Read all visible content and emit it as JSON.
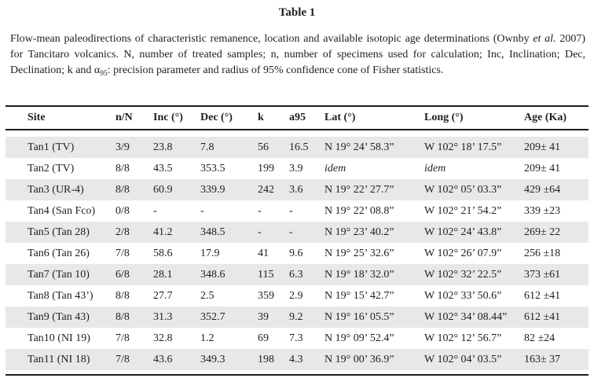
{
  "title": "Table 1",
  "caption": {
    "part1": "Flow-mean paleodirections of characteristic remanence, location and available isotopic age determinations (Ownby ",
    "etal": "et al.",
    "part2": " 2007) for Tancitaro volcanics. N, number of treated samples; n, number of specimens used for calculation; Inc, Inclination; Dec, Declination; k and ",
    "alpha": "α",
    "alpha_sub": "95",
    "part3": ": precision parameter and radius of 95% confidence cone of Fisher statistics."
  },
  "colors": {
    "background": "#ffffff",
    "text": "#1f1f1f",
    "rule": "#1c1c1c",
    "row_shade": "#e8e8e8"
  },
  "table": {
    "headers": [
      "Site",
      "n/N",
      "Inc (°)",
      "Dec (°)",
      "k",
      "a95",
      "Lat (°)",
      "Long (°)",
      "Age (Ka)"
    ],
    "rows": [
      [
        "Tan1 (TV)",
        "3/9",
        "23.8",
        "7.8",
        "56",
        "16.5",
        "N 19° 24’ 58.3”",
        "W 102° 18’ 17.5”",
        "209± 41"
      ],
      [
        "Tan2 (TV)",
        "8/8",
        "43.5",
        "353.5",
        "199",
        "3.9",
        "idem",
        "idem",
        "209± 41"
      ],
      [
        "Tan3 (UR-4)",
        "8/8",
        "60.9",
        "339.9",
        "242",
        "3.6",
        "N 19° 22’ 27.7”",
        "W 102° 05’ 03.3”",
        "429 ±64"
      ],
      [
        "Tan4 (San Fco)",
        "0/8",
        "-",
        "-",
        "-",
        "-",
        "N 19° 22’ 08.8”",
        "W 102° 21’ 54.2”",
        "339 ±23"
      ],
      [
        "Tan5 (Tan 28)",
        "2/8",
        "41.2",
        "348.5",
        "-",
        "-",
        "N 19° 23’ 40.2”",
        "W 102° 24’ 43.8”",
        "269± 22"
      ],
      [
        "Tan6 (Tan 26)",
        "7/8",
        "58.6",
        "17.9",
        "41",
        "9.6",
        "N 19° 25’ 32.6”",
        "W 102° 26’ 07.9”",
        "256 ±18"
      ],
      [
        "Tan7 (Tan 10)",
        "6/8",
        "28.1",
        "348.6",
        "115",
        "6.3",
        "N 19° 18’ 32.0”",
        "W 102° 32’ 22.5”",
        "373 ±61"
      ],
      [
        "Tan8 (Tan 43’)",
        "8/8",
        "27.7",
        "2.5",
        "359",
        "2.9",
        "N 19° 15’ 42.7”",
        "W 102° 33’ 50.6”",
        "612 ±41"
      ],
      [
        "Tan9 (Tan 43)",
        "8/8",
        "31.3",
        "352.7",
        "39",
        "9.2",
        "N 19° 16’ 05.5”",
        "W 102° 34’ 08.44”",
        "612 ±41"
      ],
      [
        "Tan10 (NI 19)",
        "7/8",
        "32.8",
        "1.2",
        "69",
        "7.3",
        "N 19° 09’ 52.4”",
        "W 102° 12’ 56.7”",
        "82 ±24"
      ],
      [
        "Tan11 (NI 18)",
        "7/8",
        "43.6",
        "349.3",
        "198",
        "4.3",
        "N 19° 00’ 36.9”",
        "W 102° 04’ 03.5”",
        "163± 37"
      ]
    ],
    "column_keys": [
      "site",
      "n-n",
      "inc",
      "dec",
      "k",
      "a95",
      "lat",
      "long",
      "age"
    ]
  }
}
